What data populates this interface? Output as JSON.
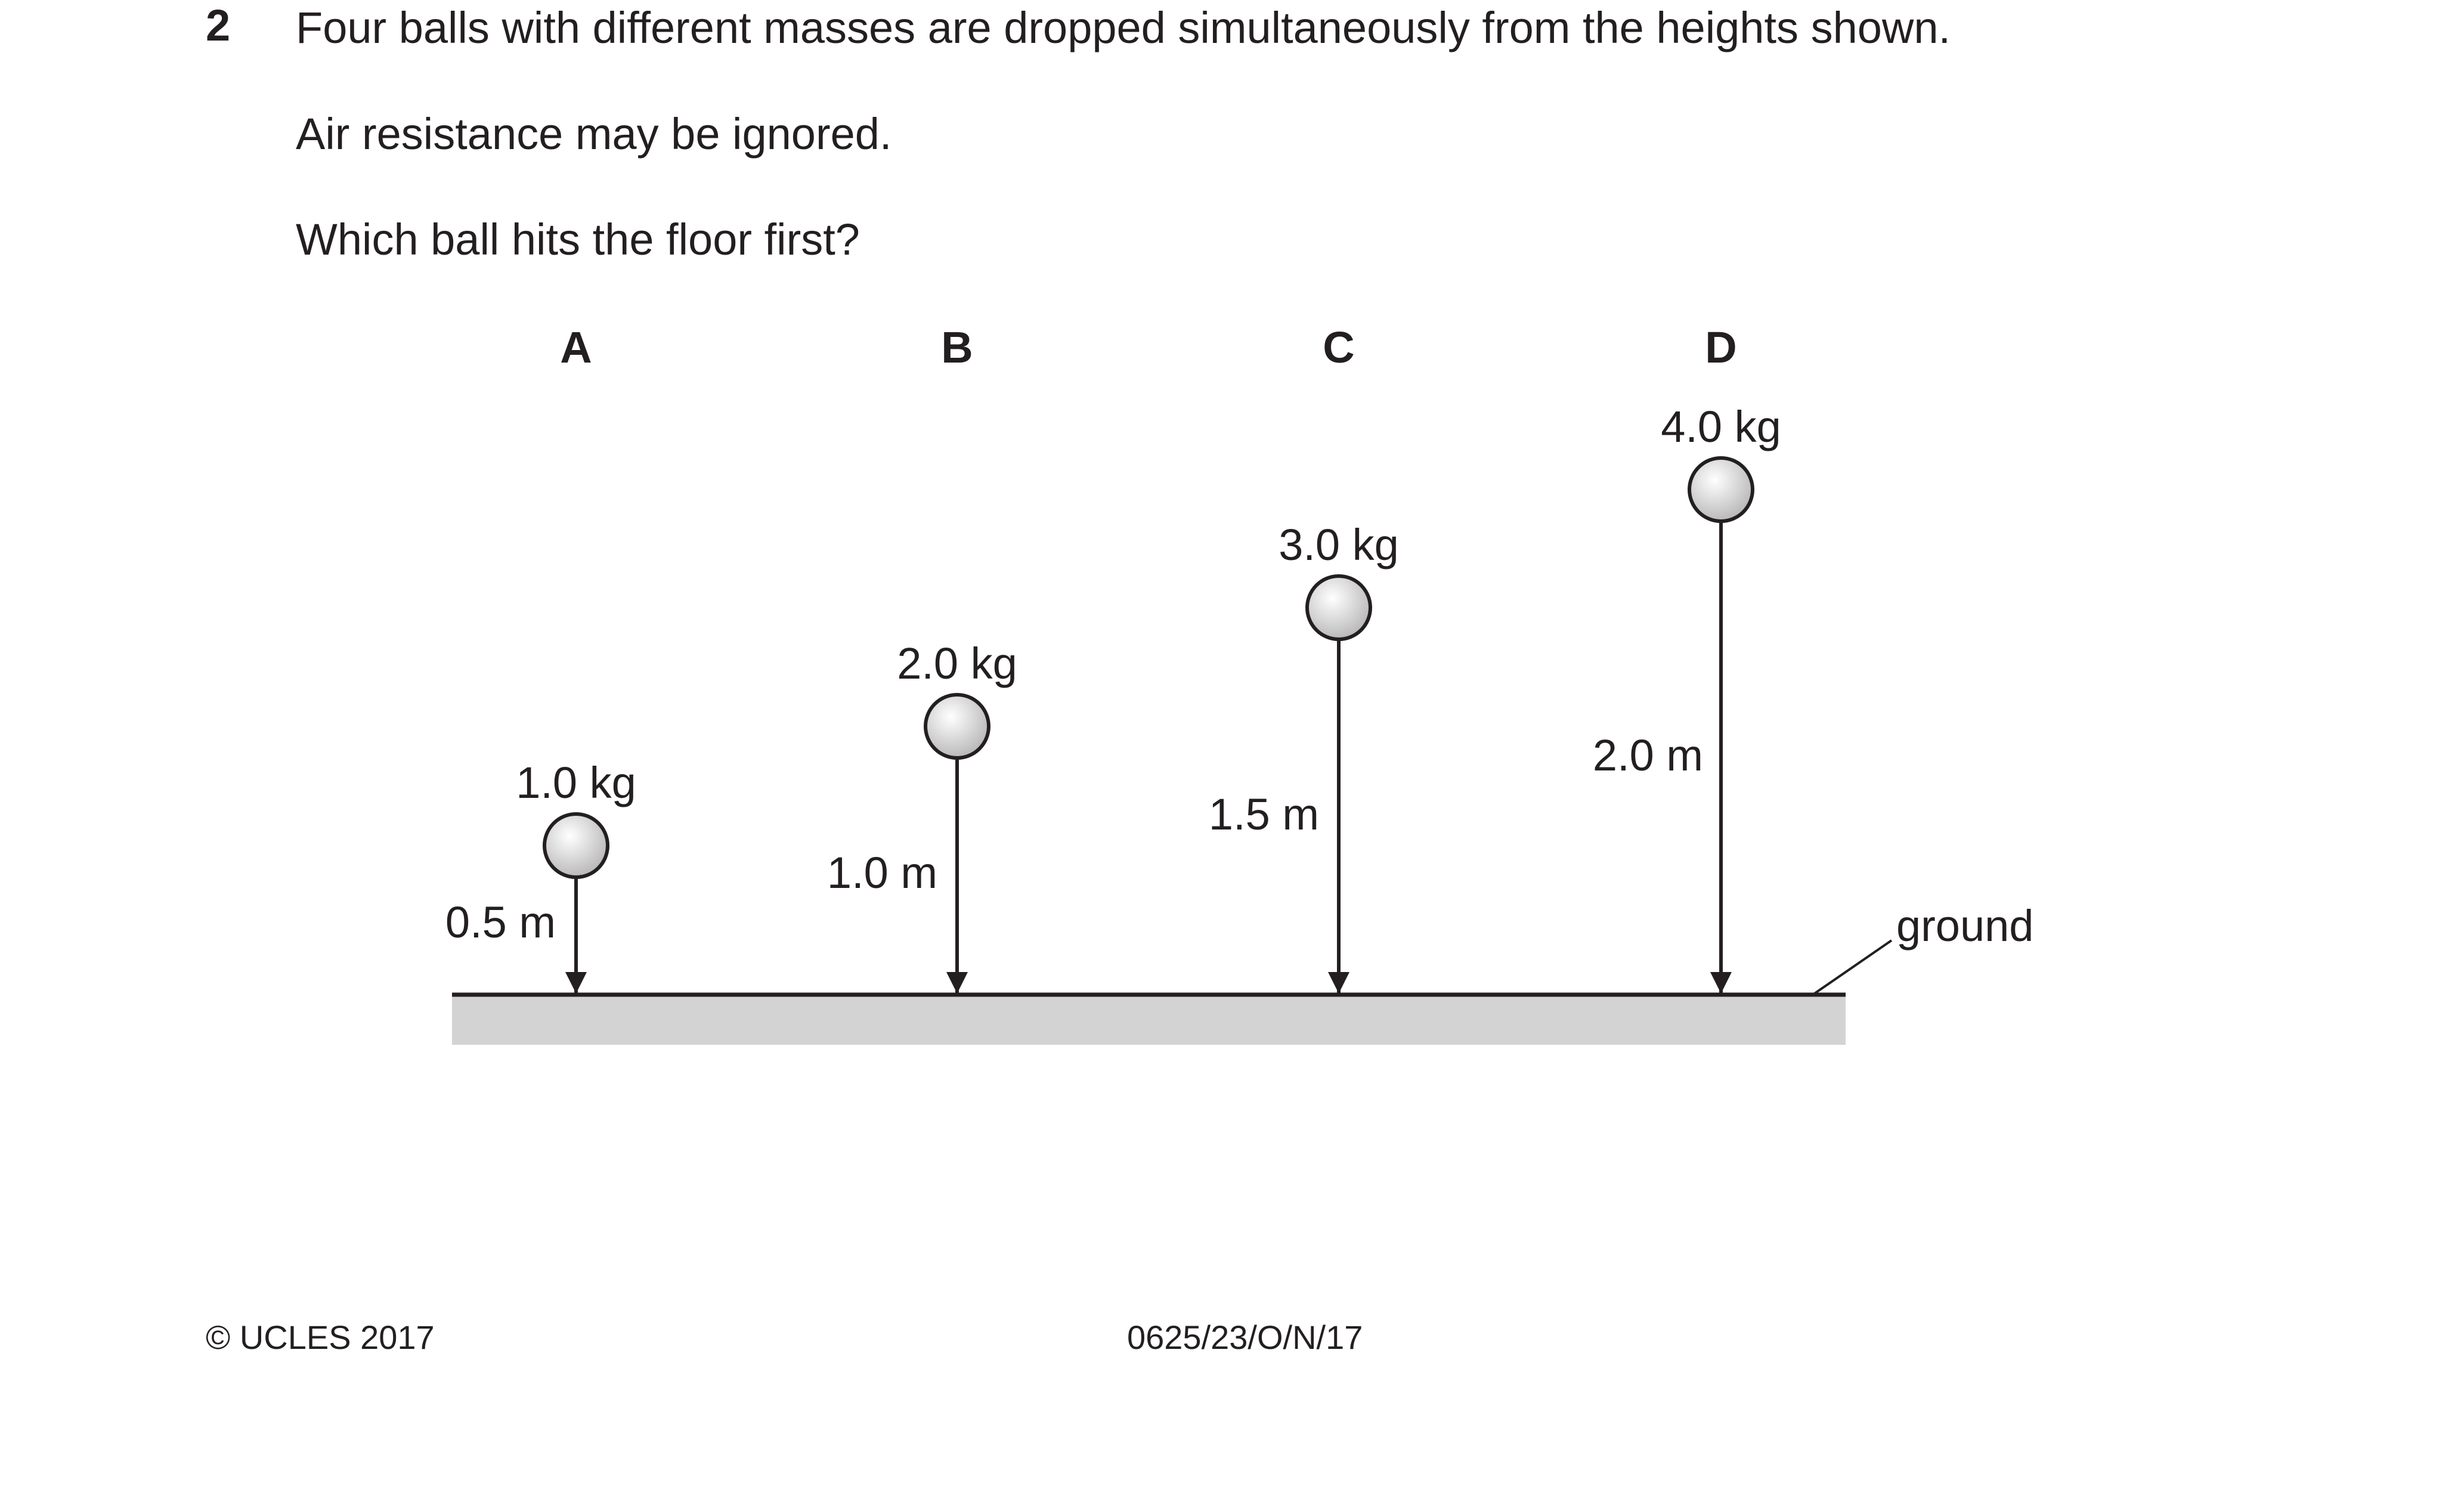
{
  "question": {
    "number": "2",
    "lines": [
      "Four balls with different masses are dropped simultaneously from the heights shown.",
      "Air resistance may be ignored.",
      "Which ball hits the floor first?"
    ]
  },
  "diagram": {
    "balls": [
      {
        "letter": "A",
        "mass": "1.0 kg",
        "height": "0.5 m",
        "height_m": 0.5
      },
      {
        "letter": "B",
        "mass": "2.0 kg",
        "height": "1.0 m",
        "height_m": 1.0
      },
      {
        "letter": "C",
        "mass": "3.0 kg",
        "height": "1.5 m",
        "height_m": 1.5
      },
      {
        "letter": "D",
        "mass": "4.0 kg",
        "height": "2.0 m",
        "height_m": 2.0
      }
    ],
    "ground_label": "ground",
    "colors": {
      "ink": "#231f20",
      "ground_fill": "#d3d3d3",
      "ball_highlight": "#ffffff",
      "ball_shadow": "#b4b4b4"
    }
  },
  "footer": {
    "copyright": "© UCLES 2017",
    "paper_code": "0625/23/O/N/17"
  }
}
